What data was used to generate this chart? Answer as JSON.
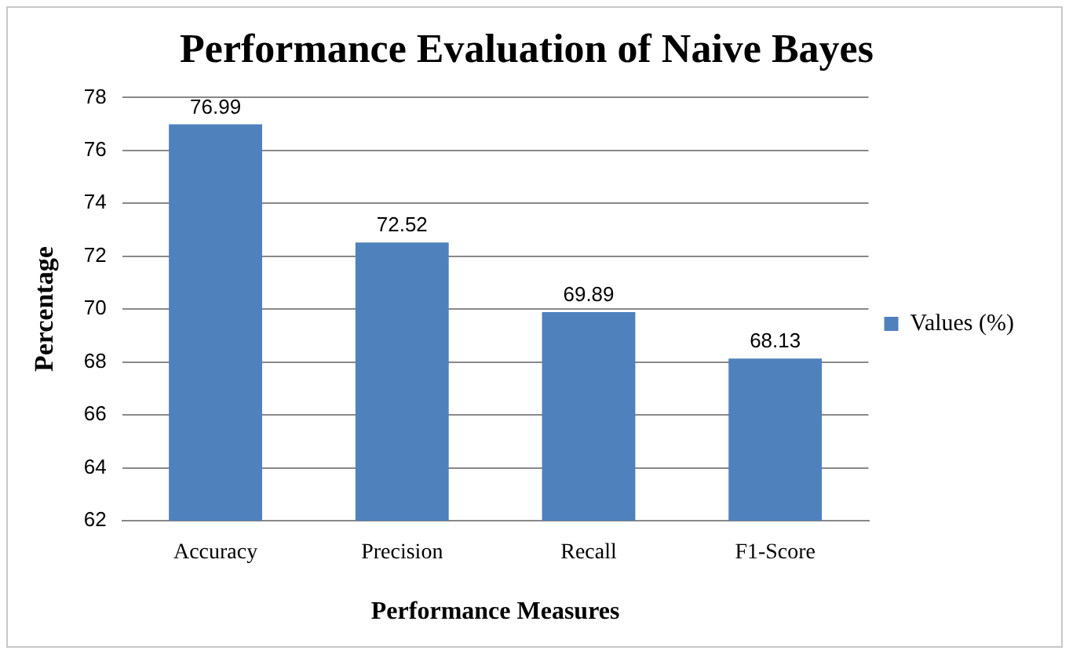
{
  "chart_data": {
    "type": "bar",
    "title": "Performance Evaluation of Naive Bayes",
    "xlabel": "Performance Measures",
    "ylabel": "Percentage",
    "categories": [
      "Accuracy",
      "Precision",
      "Recall",
      "F1-Score"
    ],
    "series": [
      {
        "name": "Values (%)",
        "color": "#4f81bd",
        "values": [
          76.99,
          72.52,
          69.89,
          68.13
        ]
      }
    ],
    "ylim": [
      62,
      78
    ],
    "yticks": [
      62,
      64,
      66,
      68,
      70,
      72,
      74,
      76,
      78
    ],
    "grid": "y",
    "legend": "right",
    "data_labels": true
  }
}
